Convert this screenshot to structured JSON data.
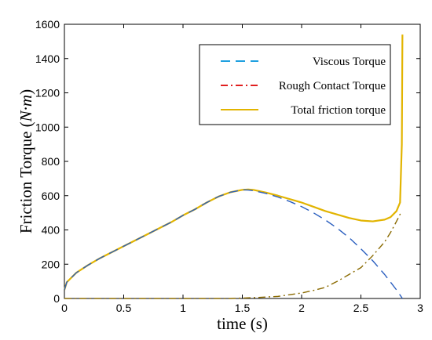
{
  "chart_data": {
    "type": "line",
    "xlabel": "time (s)",
    "ylabel": "Friction Torque",
    "ylabel_unit": "N·m",
    "xlim": [
      0,
      3
    ],
    "ylim": [
      0,
      1600
    ],
    "x_ticks": [
      "0",
      "0.5",
      "1",
      "1.5",
      "2",
      "2.5",
      "3"
    ],
    "y_ticks": [
      "0",
      "200",
      "400",
      "600",
      "800",
      "1000",
      "1200",
      "1400",
      "1600"
    ],
    "grid": false,
    "legend_position": "top-right",
    "series": [
      {
        "name": "Viscous Torque",
        "color": "#2b5fbf",
        "style": "dashed",
        "x": [
          0,
          0.02,
          0.1,
          0.2,
          0.3,
          0.5,
          0.7,
          0.9,
          1.0,
          1.1,
          1.2,
          1.3,
          1.4,
          1.5,
          1.55,
          1.6,
          1.7,
          1.8,
          1.9,
          2.0,
          2.1,
          2.2,
          2.3,
          2.4,
          2.5,
          2.6,
          2.7,
          2.8,
          2.85
        ],
        "y": [
          50,
          95,
          150,
          195,
          235,
          305,
          375,
          445,
          485,
          520,
          560,
          595,
          620,
          634,
          633,
          628,
          613,
          592,
          566,
          536,
          500,
          458,
          410,
          355,
          290,
          220,
          140,
          50,
          0
        ]
      },
      {
        "name": "Rough Contact Torque",
        "color": "#8a6a00",
        "style": "dashdot",
        "x": [
          0,
          0.5,
          1.0,
          1.4,
          1.6,
          1.8,
          1.9,
          2.0,
          2.1,
          2.2,
          2.3,
          2.4,
          2.5,
          2.6,
          2.7,
          2.75,
          2.8,
          2.84
        ],
        "y": [
          0,
          0,
          0,
          0,
          5,
          12,
          22,
          32,
          47,
          65,
          100,
          140,
          180,
          250,
          330,
          385,
          450,
          505
        ]
      },
      {
        "name": "Total friction torque",
        "color": "#e2b400",
        "style": "solid",
        "x": [
          0,
          0.02,
          0.1,
          0.2,
          0.3,
          0.5,
          0.7,
          0.9,
          1.0,
          1.1,
          1.2,
          1.3,
          1.4,
          1.5,
          1.55,
          1.6,
          1.7,
          1.8,
          1.9,
          2.0,
          2.1,
          2.2,
          2.3,
          2.4,
          2.5,
          2.6,
          2.7,
          2.75,
          2.8,
          2.83,
          2.845,
          2.85
        ],
        "y": [
          50,
          95,
          150,
          195,
          235,
          305,
          375,
          445,
          485,
          520,
          560,
          595,
          620,
          634,
          636,
          633,
          618,
          600,
          580,
          560,
          535,
          510,
          490,
          470,
          455,
          450,
          460,
          475,
          510,
          560,
          900,
          1540
        ]
      }
    ]
  }
}
